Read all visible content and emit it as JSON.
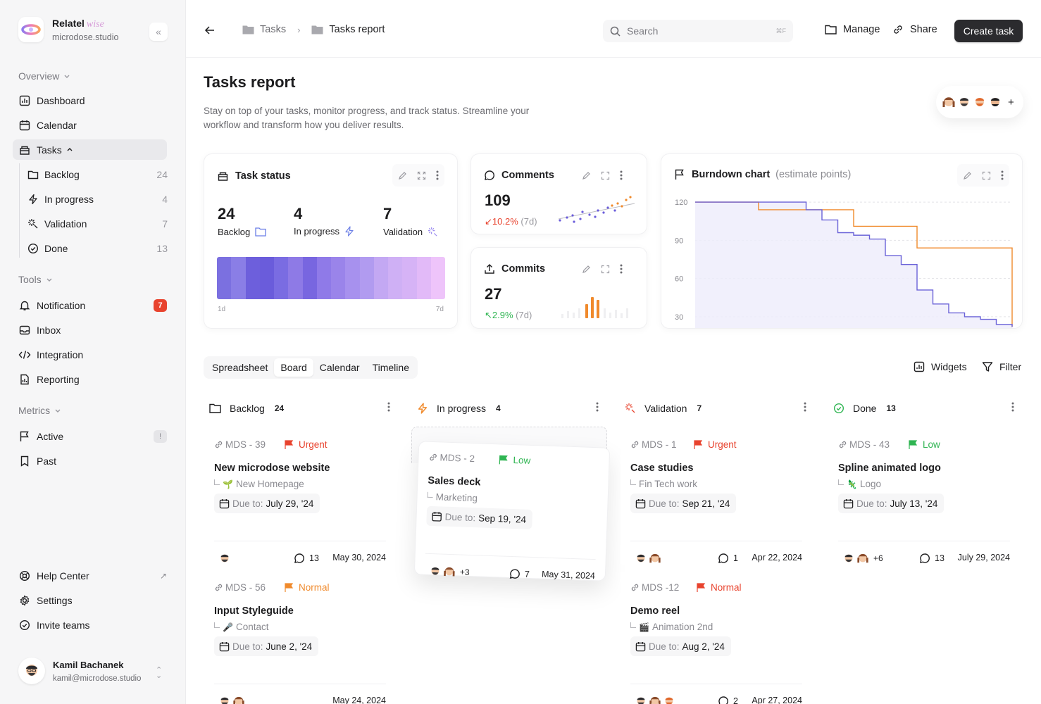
{
  "brand": {
    "name": "Relatel",
    "wordmark": "wise",
    "subtitle": "microdose.studio"
  },
  "sidebar": {
    "overview_label": "Overview",
    "overview": [
      {
        "label": "Dashboard",
        "icon": "dashboard-icon"
      },
      {
        "label": "Calendar",
        "icon": "calendar-icon"
      },
      {
        "label": "Tasks",
        "icon": "tasks-icon"
      }
    ],
    "task_children": [
      {
        "label": "Backlog",
        "count": "24",
        "icon": "folder-icon"
      },
      {
        "label": "In progress",
        "count": "4",
        "icon": "bolt-icon"
      },
      {
        "label": "Validation",
        "count": "7",
        "icon": "sparkle-icon"
      },
      {
        "label": "Done",
        "count": "13",
        "icon": "check-circle-icon"
      }
    ],
    "tools_label": "Tools",
    "tools": [
      {
        "label": "Notification",
        "badge": "7",
        "icon": "bell-icon"
      },
      {
        "label": "Inbox",
        "icon": "inbox-icon"
      },
      {
        "label": "Integration",
        "icon": "code-icon"
      },
      {
        "label": "Reporting",
        "icon": "report-icon"
      }
    ],
    "metrics_label": "Metrics",
    "metrics": [
      {
        "label": "Active",
        "badge": "!",
        "icon": "flag-icon"
      },
      {
        "label": "Past",
        "icon": "bookmark-icon"
      }
    ],
    "bottom": [
      {
        "label": "Help Center",
        "icon": "help-icon"
      },
      {
        "label": "Settings",
        "icon": "settings-icon"
      },
      {
        "label": "Invite teams",
        "icon": "invite-icon"
      }
    ],
    "user": {
      "name": "Kamil Bachanek",
      "email": "kamil@microdose.studio"
    }
  },
  "topbar": {
    "breadcrumb": [
      "Tasks",
      "Tasks report"
    ],
    "search_placeholder": "Search",
    "search_shortcut": "⌘F",
    "manage": "Manage",
    "share": "Share",
    "create": "Create task"
  },
  "header": {
    "title": "Tasks report",
    "description": "Stay on top of your tasks, monitor progress, and track status. Streamline your workflow and transform how you deliver results.",
    "members_add": "+"
  },
  "task_status": {
    "title": "Task status",
    "stats": [
      {
        "value": "24",
        "label": "Backlog"
      },
      {
        "value": "4",
        "label": "In progress"
      },
      {
        "value": "7",
        "label": "Validation"
      }
    ],
    "axis_start": "1d",
    "axis_end": "7d",
    "colors": [
      "#7b70e0",
      "#8a7ee6",
      "#6d5fdc",
      "#6a5cdb",
      "#7a6ce2",
      "#8e7ae6",
      "#7866e0",
      "#8f7ae8",
      "#9a84ea",
      "#a791ee",
      "#b19bf0",
      "#c3a8f3",
      "#cfb0f5",
      "#d6b3f6",
      "#e2baf8",
      "#eec4fa"
    ]
  },
  "comments": {
    "title": "Comments",
    "value": "109",
    "delta": "10.2%",
    "period": "(7d)",
    "trend": "down"
  },
  "commits": {
    "title": "Commits",
    "value": "27",
    "delta": "2.9%",
    "period": "(7d)",
    "trend": "up"
  },
  "burndown": {
    "title": "Burndown chart",
    "subtitle": "(estimate points)",
    "y_ticks": [
      "120",
      "90",
      "60",
      "30"
    ]
  },
  "chart_data": {
    "type": "line",
    "title": "Burndown chart",
    "subtitle": "(estimate points)",
    "ylim": [
      20,
      130
    ],
    "xlim": [
      0,
      20
    ],
    "y_ticks": [
      120,
      90,
      60,
      30
    ],
    "series": [
      {
        "color": "#f08a2c",
        "x": [
          0,
          1,
          2,
          3,
          4,
          5,
          6,
          7,
          8,
          9,
          10,
          11,
          12,
          13,
          14,
          15,
          16,
          17,
          18,
          19,
          20
        ],
        "y": [
          120,
          120,
          120,
          120,
          114,
          114,
          114,
          114,
          114,
          114,
          101,
          101,
          101,
          101,
          84,
          84,
          84,
          84,
          84,
          84,
          22
        ]
      },
      {
        "color": "#6a62d8",
        "x": [
          0,
          1,
          2,
          3,
          4,
          5,
          6,
          7,
          8,
          9,
          10,
          11,
          12,
          13,
          14,
          15,
          16,
          17,
          18,
          19,
          20
        ],
        "y": [
          120,
          120,
          120,
          120,
          120,
          120,
          120,
          114,
          106,
          96,
          94,
          91,
          78,
          71,
          51,
          40,
          33,
          30,
          28,
          24,
          22
        ]
      }
    ]
  },
  "view_tabs": [
    "Spreadsheet",
    "Board",
    "Calendar",
    "Timeline"
  ],
  "tools": {
    "widgets": "Widgets",
    "filter": "Filter"
  },
  "columns": [
    {
      "name": "Backlog",
      "count": "24"
    },
    {
      "name": "In progress",
      "count": "4"
    },
    {
      "name": "Validation",
      "count": "7"
    },
    {
      "name": "Done",
      "count": "13"
    }
  ],
  "tasks": [
    {
      "id": "MDS - 39",
      "priority": "Urgent",
      "prio_color": "#e8432e",
      "title": "New microdose website",
      "sub": "New Homepage",
      "emoji": "🌱",
      "due_label": "Due to:",
      "due": "July 29, '24",
      "extra": "",
      "comments": "13",
      "date": "May 30, 2024"
    },
    {
      "id": "MDS - 2",
      "priority": "Low",
      "prio_color": "#2fb552",
      "title": "Sales deck",
      "sub": "Marketing",
      "emoji": "",
      "due_label": "Due to:",
      "due": "Sep 19, '24",
      "extra": "+3",
      "comments": "7",
      "date": "May 31, 2024"
    },
    {
      "id": "MDS - 1",
      "priority": "Urgent",
      "prio_color": "#e8432e",
      "title": "Case studies",
      "sub": "Fin Tech work",
      "emoji": "",
      "due_label": "Due to:",
      "due": "Sep 21, '24",
      "extra": "",
      "comments": "1",
      "date": "Apr 22, 2024"
    },
    {
      "id": "MDS - 43",
      "priority": "Low",
      "prio_color": "#2fb552",
      "title": "Spline animated logo",
      "sub": "Logo",
      "emoji": "🦎",
      "due_label": "Due to:",
      "due": "July 13, '24",
      "extra": "+6",
      "comments": "13",
      "date": "July 29, 2024"
    },
    {
      "id": "MDS - 56",
      "priority": "Normal",
      "prio_color": "#f08a2c",
      "title": "Input Styleguide",
      "sub": "Contact",
      "emoji": "🎤",
      "due_label": "Due to:",
      "due": "June 2, '24",
      "extra": "",
      "comments": "",
      "date": "May 24, 2024"
    },
    {
      "id": "MDS -12",
      "priority": "Normal",
      "prio_color": "#e8432e",
      "title": "Demo reel",
      "sub": "Animation 2nd",
      "emoji": "🎬",
      "due_label": "Due to:",
      "due": "Aug 2, '24",
      "extra": "",
      "comments": "2",
      "date": "Apr 27, 2024"
    }
  ]
}
